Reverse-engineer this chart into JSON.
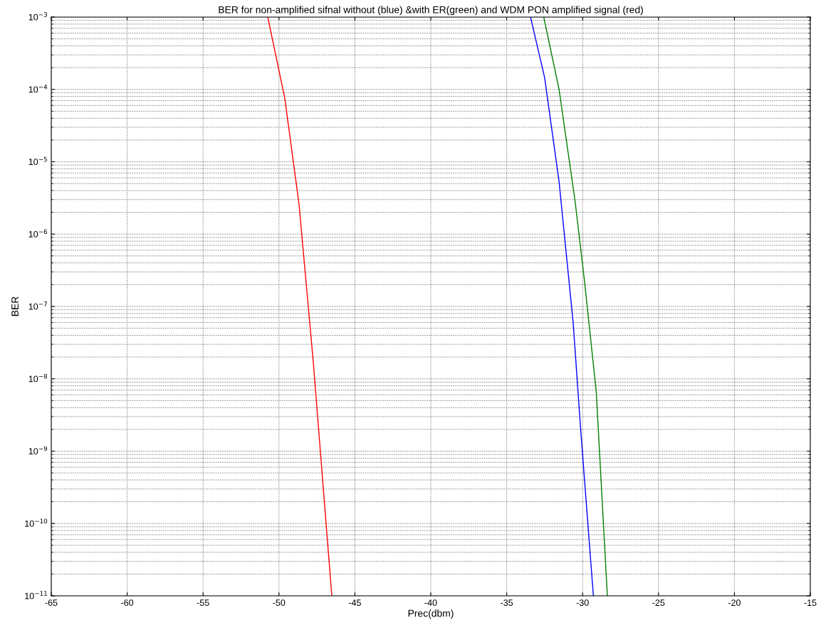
{
  "chart_data": {
    "type": "line",
    "title": "BER for non-amplified sifnal without (blue) &with ER(green) and WDM PON amplified signal (red)",
    "xlabel": "Prec(dbm)",
    "ylabel": "BER",
    "log": "y",
    "grid": true,
    "line_style": "solid",
    "marker": "none",
    "xlim": [
      -65,
      -15
    ],
    "xticks": [
      -65,
      -60,
      -55,
      -50,
      -45,
      -40,
      -35,
      -30,
      -25,
      -20,
      -15
    ],
    "ylim": [
      1e-11,
      0.001
    ],
    "yticks": [
      {
        "value": 1e-11,
        "label": "10$^{−11}$"
      },
      {
        "value": 1e-10,
        "label": "10$^{−10}$"
      },
      {
        "value": 1e-09,
        "label": "10$^{−9}$"
      },
      {
        "value": 1e-08,
        "label": "10$^{−8}$"
      },
      {
        "value": 1e-07,
        "label": "10$^{−7}$"
      },
      {
        "value": 1e-06,
        "label": "10$^{−6}$"
      },
      {
        "value": 1e-05,
        "label": "10$^{−5}$"
      },
      {
        "value": 0.0001,
        "label": "10$^{−4}$"
      },
      {
        "value": 0.001,
        "label": "10$^{−3}$"
      }
    ],
    "series": [
      {
        "color": "#0000ff",
        "x": [
          -33.43,
          -32.5,
          -31.55,
          -30.62,
          -30.12,
          -29.29
        ],
        "values": [
          0.001,
          0.000145,
          5.3e-06,
          5.9e-08,
          1.9e-09,
          1e-11
        ]
      },
      {
        "color": "#008000",
        "x": [
          -32.56,
          -31.55,
          -30.49,
          -29.87,
          -29.1,
          -28.37
        ],
        "values": [
          0.001,
          0.0001,
          2.8e-06,
          2.2e-07,
          6.6e-09,
          1e-11
        ]
      },
      {
        "color": "#ff0000",
        "x": [
          -50.74,
          -49.62,
          -48.68,
          -47.74,
          -46.52
        ],
        "values": [
          0.001,
          7.6e-05,
          2.6e-06,
          1.7e-08,
          1e-11
        ]
      }
    ]
  }
}
